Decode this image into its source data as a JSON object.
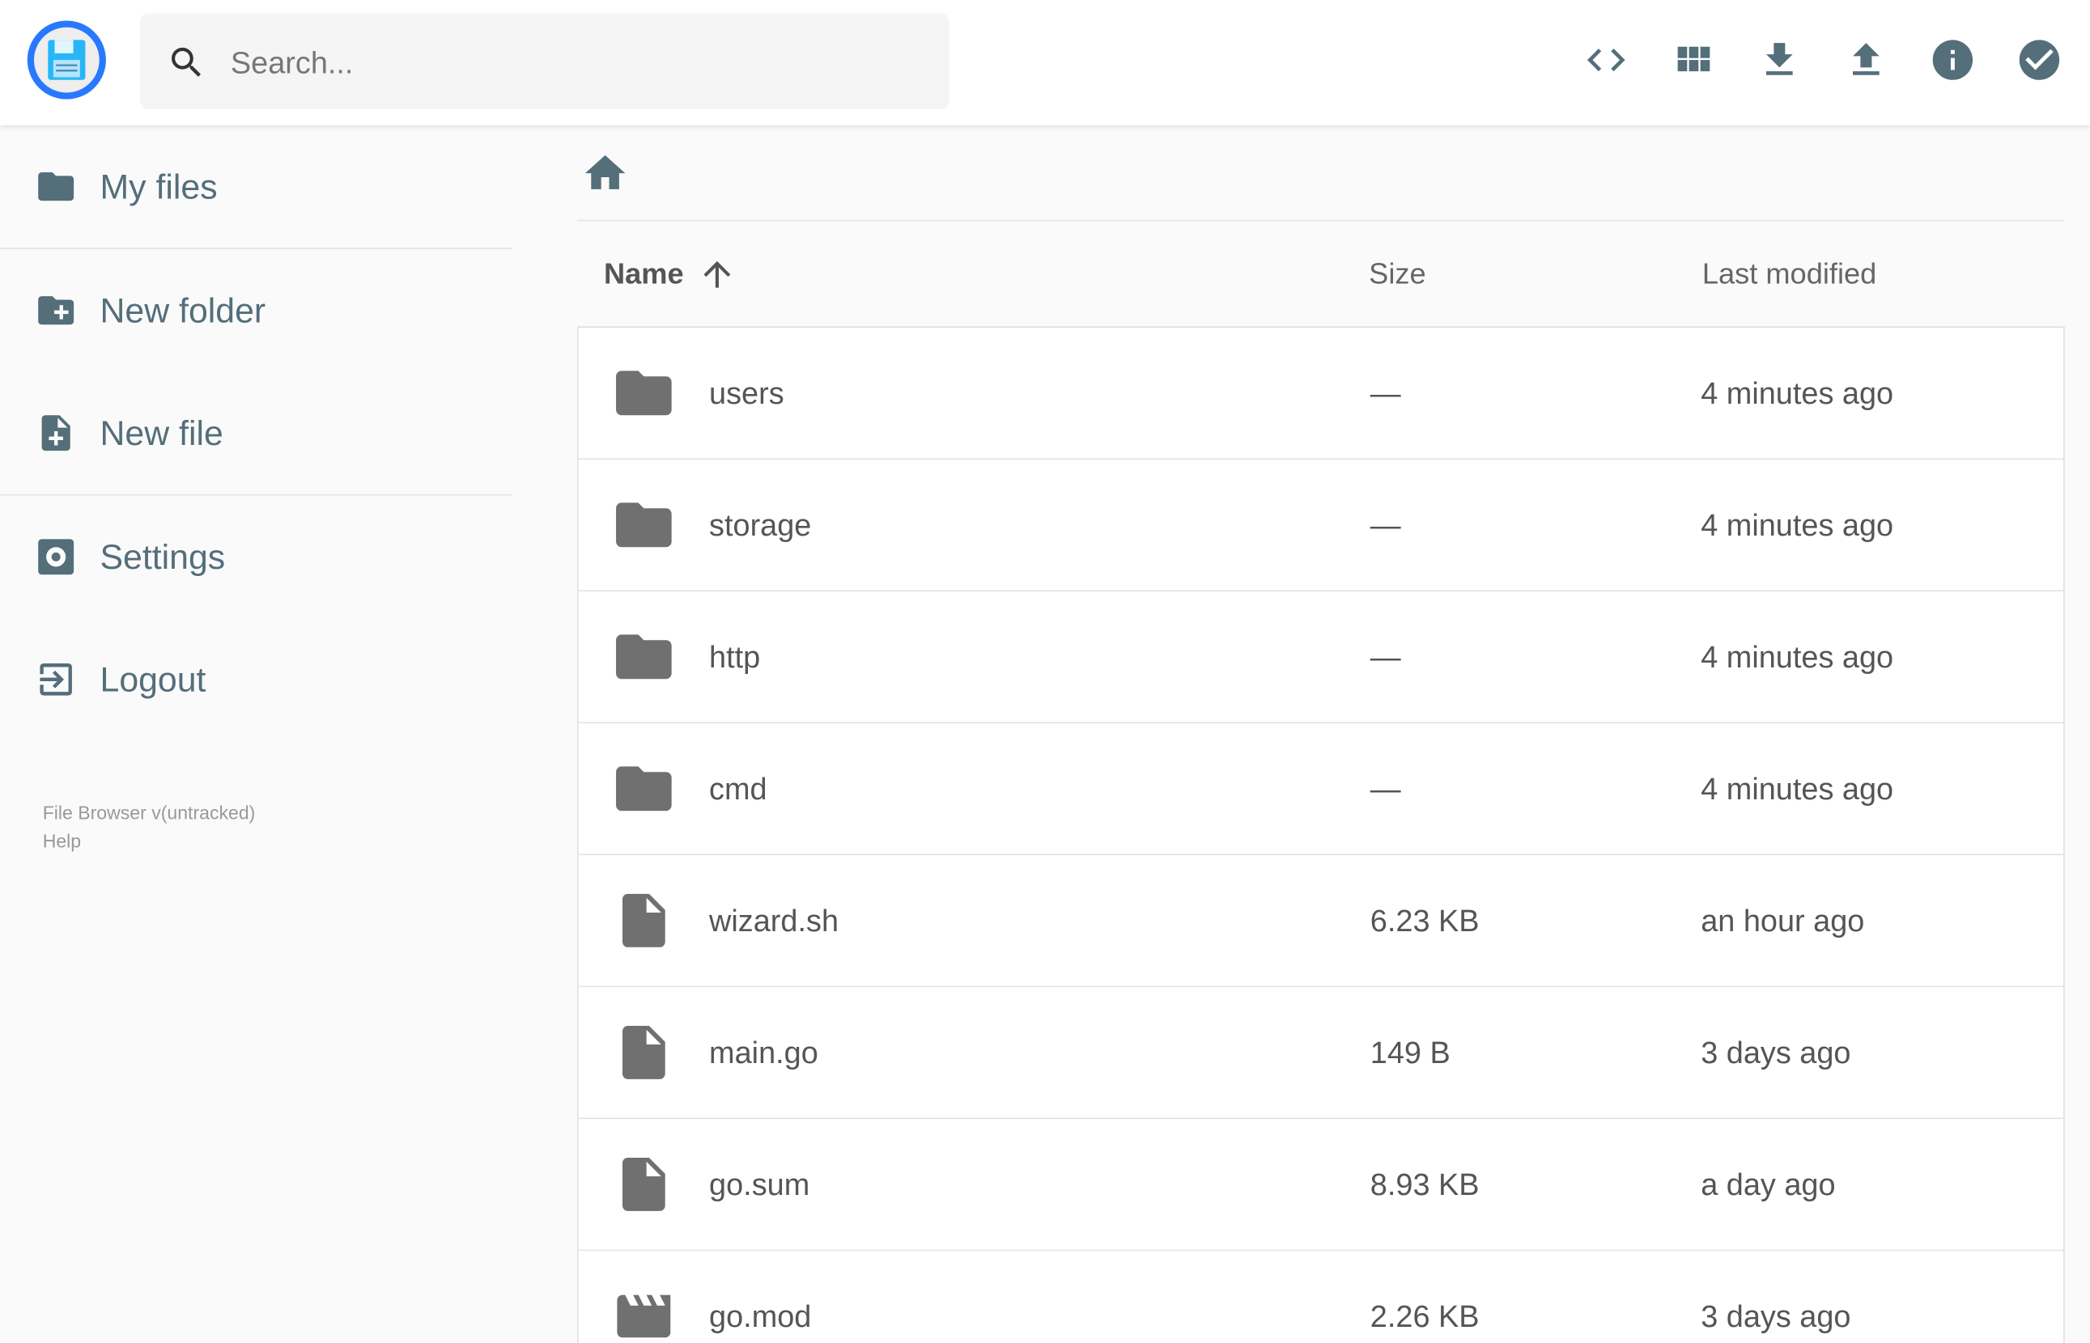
{
  "search": {
    "placeholder": "Search..."
  },
  "header": {
    "actions": [
      "code-icon",
      "grid-view-icon",
      "download-icon",
      "upload-icon",
      "info-icon",
      "check-circle-icon"
    ]
  },
  "colors": {
    "icon": "#546e7a",
    "accent": "#2979ff",
    "file_icon": "#707070"
  },
  "sidebar": {
    "items": [
      {
        "label": "My files",
        "icon": "folder-icon"
      },
      {
        "label": "New folder",
        "icon": "create-new-folder-icon"
      },
      {
        "label": "New file",
        "icon": "note-add-icon"
      },
      {
        "label": "Settings",
        "icon": "settings-icon"
      },
      {
        "label": "Logout",
        "icon": "exit-icon"
      }
    ],
    "credits": {
      "version": "File Browser v(untracked)",
      "help": "Help"
    }
  },
  "table": {
    "headers": {
      "name": "Name",
      "size": "Size",
      "modified": "Last modified"
    },
    "rows": [
      {
        "name": "users",
        "type": "folder",
        "size": "—",
        "modified": "4 minutes ago"
      },
      {
        "name": "storage",
        "type": "folder",
        "size": "—",
        "modified": "4 minutes ago"
      },
      {
        "name": "http",
        "type": "folder",
        "size": "—",
        "modified": "4 minutes ago"
      },
      {
        "name": "cmd",
        "type": "folder",
        "size": "—",
        "modified": "4 minutes ago"
      },
      {
        "name": "wizard.sh",
        "type": "file",
        "size": "6.23 KB",
        "modified": "an hour ago"
      },
      {
        "name": "main.go",
        "type": "file",
        "size": "149 B",
        "modified": "3 days ago"
      },
      {
        "name": "go.sum",
        "type": "file",
        "size": "8.93 KB",
        "modified": "a day ago"
      },
      {
        "name": "go.mod",
        "type": "video",
        "size": "2.26 KB",
        "modified": "3 days ago"
      }
    ]
  }
}
